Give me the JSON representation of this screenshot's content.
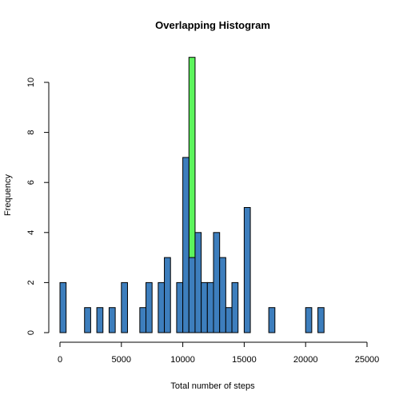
{
  "chart_data": {
    "type": "bar",
    "title": "Overlapping Histogram",
    "xlabel": "Total number of steps",
    "ylabel": "Frequency",
    "xlim": [
      0,
      25000
    ],
    "ylim": [
      0,
      11
    ],
    "x_ticks": [
      0,
      5000,
      10000,
      15000,
      20000,
      25000
    ],
    "y_ticks": [
      0,
      2,
      4,
      6,
      8,
      10
    ],
    "bin_width": 500,
    "series": [
      {
        "color": "#5cf55c",
        "bins": [
          {
            "x0": 10500,
            "x1": 11000,
            "count": 11
          }
        ]
      },
      {
        "color": "#3d7ebd",
        "bins": [
          {
            "x0": 0,
            "x1": 500,
            "count": 2
          },
          {
            "x0": 2000,
            "x1": 2500,
            "count": 1
          },
          {
            "x0": 3000,
            "x1": 3500,
            "count": 1
          },
          {
            "x0": 4000,
            "x1": 4500,
            "count": 1
          },
          {
            "x0": 5000,
            "x1": 5500,
            "count": 2
          },
          {
            "x0": 6500,
            "x1": 7000,
            "count": 1
          },
          {
            "x0": 7000,
            "x1": 7500,
            "count": 2
          },
          {
            "x0": 8000,
            "x1": 8500,
            "count": 2
          },
          {
            "x0": 8500,
            "x1": 9000,
            "count": 3
          },
          {
            "x0": 9500,
            "x1": 10000,
            "count": 2
          },
          {
            "x0": 10000,
            "x1": 10500,
            "count": 7
          },
          {
            "x0": 10500,
            "x1": 11000,
            "count": 3
          },
          {
            "x0": 11000,
            "x1": 11500,
            "count": 4
          },
          {
            "x0": 11500,
            "x1": 12000,
            "count": 2
          },
          {
            "x0": 12000,
            "x1": 12500,
            "count": 2
          },
          {
            "x0": 12500,
            "x1": 13000,
            "count": 4
          },
          {
            "x0": 13000,
            "x1": 13500,
            "count": 3
          },
          {
            "x0": 13500,
            "x1": 14000,
            "count": 1
          },
          {
            "x0": 14000,
            "x1": 14500,
            "count": 2
          },
          {
            "x0": 15000,
            "x1": 15500,
            "count": 5
          },
          {
            "x0": 17000,
            "x1": 17500,
            "count": 1
          },
          {
            "x0": 20000,
            "x1": 20500,
            "count": 1
          },
          {
            "x0": 21000,
            "x1": 21500,
            "count": 1
          }
        ]
      }
    ]
  }
}
